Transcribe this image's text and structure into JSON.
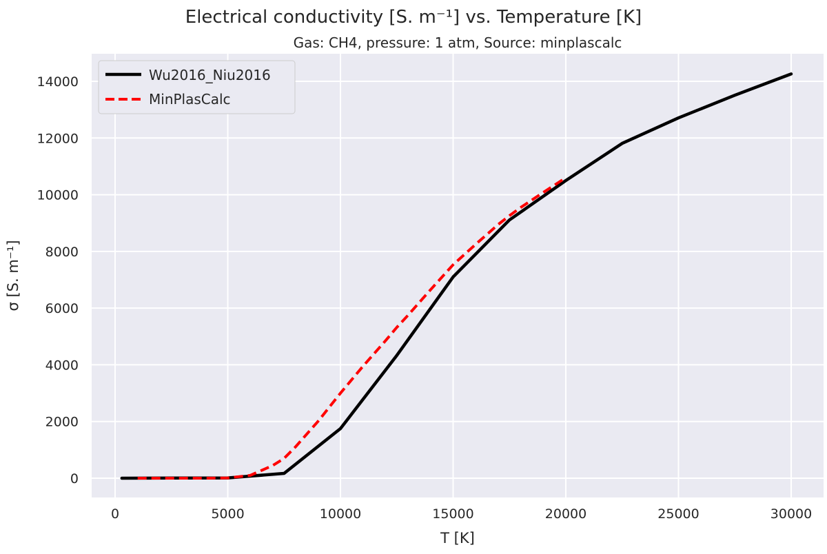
{
  "chart_data": {
    "type": "line",
    "title": "Electrical conductivity [S. m⁻¹] vs. Temperature [K]",
    "subtitle": "Gas: CH4, pressure: 1 atm, Source: minplascalc",
    "xlabel": "T [K]",
    "ylabel": "σ [S. m⁻¹]",
    "xlim": [
      -1000,
      31400
    ],
    "ylim": [
      -700,
      15000
    ],
    "xticks": [
      0,
      5000,
      10000,
      15000,
      20000,
      25000,
      30000
    ],
    "yticks": [
      0,
      2000,
      4000,
      6000,
      8000,
      10000,
      12000,
      14000
    ],
    "grid": true,
    "legend_position": "top-left",
    "series": [
      {
        "name": "Wu2016_Niu2016",
        "color": "#000000",
        "style": "solid",
        "x": [
          300,
          5000,
          7500,
          10000,
          12500,
          15000,
          17500,
          20000,
          22500,
          25000,
          27500,
          30000
        ],
        "y": [
          0,
          10,
          170,
          1750,
          4330,
          7100,
          9110,
          10500,
          11810,
          12710,
          13510,
          14260
        ]
      },
      {
        "name": "MinPlasCalc",
        "color": "#ff0000",
        "style": "dashed",
        "x": [
          1000,
          2000,
          3000,
          4000,
          5000,
          6000,
          7000,
          7500,
          8000,
          9000,
          10000,
          11000,
          12000,
          12500,
          13000,
          14000,
          15000,
          16000,
          17000,
          17500,
          18000,
          19000,
          20000
        ],
        "y": [
          0,
          0,
          0,
          0,
          10,
          100,
          450,
          700,
          1100,
          2000,
          3000,
          3950,
          4850,
          5320,
          5750,
          6650,
          7530,
          8250,
          8950,
          9260,
          9550,
          10080,
          10600
        ]
      }
    ]
  }
}
